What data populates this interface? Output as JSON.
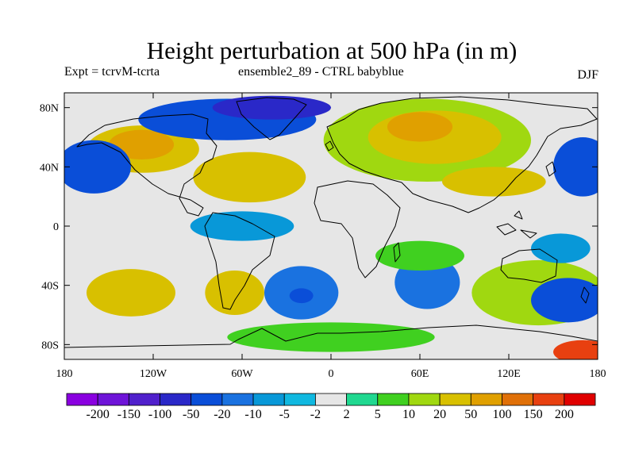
{
  "title": "Height perturbation at 500 hPa (in m)",
  "subtitle_left": "Expt = tcrvM-tcrta",
  "subtitle_center": "ensemble2_89 - CTRL babyblue",
  "subtitle_right": "DJF",
  "lat_ticks": [
    {
      "label": "80N",
      "lat": 80
    },
    {
      "label": "40N",
      "lat": 40
    },
    {
      "label": "0",
      "lat": 0
    },
    {
      "label": "40S",
      "lat": -40
    },
    {
      "label": "80S",
      "lat": -80
    }
  ],
  "lon_ticks": [
    {
      "label": "180",
      "lon": -180
    },
    {
      "label": "120W",
      "lon": -120
    },
    {
      "label": "60W",
      "lon": -60
    },
    {
      "label": "0",
      "lon": 0
    },
    {
      "label": "60E",
      "lon": 60
    },
    {
      "label": "120E",
      "lon": 120
    },
    {
      "label": "180",
      "lon": 180
    }
  ],
  "colorbar": {
    "colors": [
      "#8a00e0",
      "#6e14d8",
      "#5020cc",
      "#2a28c8",
      "#0a4ed8",
      "#1a72e0",
      "#0898d8",
      "#10b8e0",
      "#e6e6e6",
      "#20d890",
      "#40d020",
      "#a0d810",
      "#d8c000",
      "#e0a000",
      "#e07008",
      "#e84010",
      "#e00000"
    ],
    "labels": [
      "-200",
      "-150",
      "-100",
      "-50",
      "-20",
      "-10",
      "-5",
      "-2",
      "2",
      "5",
      "10",
      "20",
      "50",
      "100",
      "150",
      "200"
    ]
  },
  "chart_data": {
    "type": "heatmap",
    "title": "Height perturbation at 500 hPa (in m)",
    "variable": "500 hPa geopotential height perturbation",
    "units": "m",
    "season": "DJF",
    "lon_range": [
      -180,
      180
    ],
    "lat_range": [
      -90,
      90
    ],
    "contour_levels": [
      -200,
      -150,
      -100,
      -50,
      -20,
      -10,
      -5,
      -2,
      2,
      5,
      10,
      20,
      50,
      100,
      150,
      200
    ],
    "features": [
      {
        "lon": -127,
        "lat": 52,
        "rx": 38,
        "ry": 16,
        "value": 25
      },
      {
        "lon": -128,
        "lat": 55,
        "rx": 22,
        "ry": 10,
        "value": 60
      },
      {
        "lon": -160,
        "lat": 40,
        "rx": 25,
        "ry": 18,
        "value": -30
      },
      {
        "lon": 170,
        "lat": 40,
        "rx": 20,
        "ry": 20,
        "value": -30
      },
      {
        "lon": -70,
        "lat": 72,
        "rx": 60,
        "ry": 14,
        "value": -30
      },
      {
        "lon": -40,
        "lat": 80,
        "rx": 40,
        "ry": 8,
        "value": -60
      },
      {
        "lon": -55,
        "lat": 33,
        "rx": 38,
        "ry": 17,
        "value": 25
      },
      {
        "lon": -55,
        "lat": 30,
        "rx": 18,
        "ry": 7,
        "value": 40
      },
      {
        "lon": 65,
        "lat": 58,
        "rx": 70,
        "ry": 28,
        "value": 15
      },
      {
        "lon": 70,
        "lat": 60,
        "rx": 45,
        "ry": 18,
        "value": 30
      },
      {
        "lon": 60,
        "lat": 67,
        "rx": 22,
        "ry": 10,
        "value": 60
      },
      {
        "lon": 110,
        "lat": 30,
        "rx": 35,
        "ry": 10,
        "value": 25
      },
      {
        "lon": -135,
        "lat": -45,
        "rx": 30,
        "ry": 16,
        "value": 25
      },
      {
        "lon": -65,
        "lat": -45,
        "rx": 20,
        "ry": 15,
        "value": 25
      },
      {
        "lon": -20,
        "lat": -45,
        "rx": 25,
        "ry": 18,
        "value": -15
      },
      {
        "lon": -20,
        "lat": -47,
        "rx": 8,
        "ry": 5,
        "value": -30
      },
      {
        "lon": 65,
        "lat": -38,
        "rx": 22,
        "ry": 18,
        "value": -15
      },
      {
        "lon": 140,
        "lat": -45,
        "rx": 45,
        "ry": 22,
        "value": 12
      },
      {
        "lon": 160,
        "lat": -50,
        "rx": 25,
        "ry": 15,
        "value": -30
      },
      {
        "lon": 155,
        "lat": -15,
        "rx": 20,
        "ry": 10,
        "value": -7
      },
      {
        "lon": -60,
        "lat": 0,
        "rx": 35,
        "ry": 10,
        "value": -8
      },
      {
        "lon": 60,
        "lat": -20,
        "rx": 30,
        "ry": 10,
        "value": 6
      },
      {
        "lon": 0,
        "lat": -75,
        "rx": 70,
        "ry": 10,
        "value": 6
      },
      {
        "lon": 170,
        "lat": -85,
        "rx": 20,
        "ry": 8,
        "value": 150
      }
    ]
  }
}
